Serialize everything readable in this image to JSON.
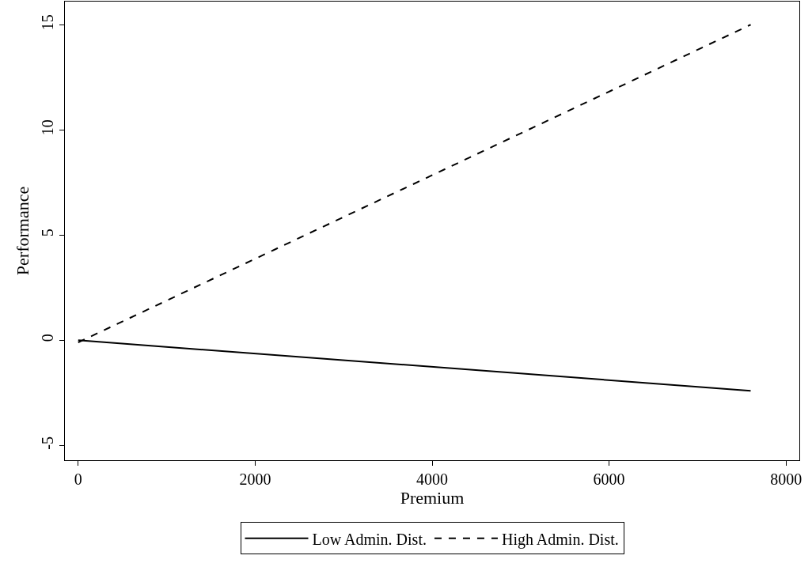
{
  "chart_data": {
    "type": "line",
    "xlabel": "Premium",
    "ylabel": "Performance",
    "x": [
      0,
      7600
    ],
    "series": [
      {
        "name": "Low Admin. Dist.",
        "color": "#000000",
        "values": [
          0,
          -2.4
        ],
        "line_style": "solid"
      },
      {
        "name": "High Admin. Dist.",
        "color": "#000000",
        "values": [
          -0.1,
          15
        ],
        "line_style": "dashed"
      }
    ],
    "xlim": [
      -150,
      8150
    ],
    "xticks": [
      0,
      2000,
      4000,
      6000,
      8000
    ],
    "ylim": [
      -5.7,
      16.1
    ],
    "yticks": [
      -5,
      0,
      5,
      10,
      15
    ],
    "legend": "bottom",
    "marker": "none"
  }
}
